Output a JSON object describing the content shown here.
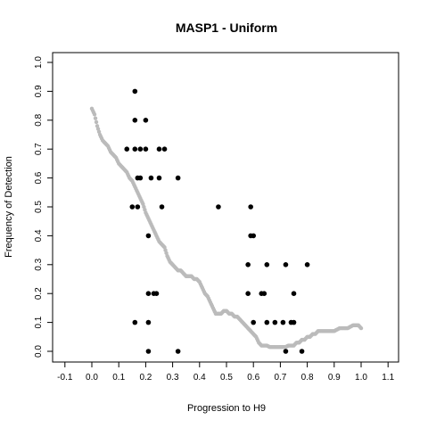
{
  "chart_data": {
    "type": "scatter",
    "title": "MASP1 - Uniform",
    "xlabel": "Progression to H9",
    "ylabel": "Frequency of Detection",
    "xlim": [
      -0.1,
      1.1
    ],
    "ylim": [
      0.0,
      1.0
    ],
    "xticks": [
      "-0.1",
      "0.0",
      "0.1",
      "0.2",
      "0.3",
      "0.4",
      "0.5",
      "0.6",
      "0.7",
      "0.8",
      "0.9",
      "1.0",
      "1.1"
    ],
    "yticks": [
      "0.0",
      "0.1",
      "0.2",
      "0.3",
      "0.4",
      "0.5",
      "0.6",
      "0.7",
      "0.8",
      "0.9",
      "1.0"
    ],
    "grid": false,
    "series": [
      {
        "color": "#000000",
        "points": [
          [
            0.16,
            0.9
          ],
          [
            0.16,
            0.8
          ],
          [
            0.2,
            0.8
          ],
          [
            0.13,
            0.7
          ],
          [
            0.16,
            0.7
          ],
          [
            0.18,
            0.7
          ],
          [
            0.2,
            0.7
          ],
          [
            0.25,
            0.7
          ],
          [
            0.27,
            0.7
          ],
          [
            0.17,
            0.6
          ],
          [
            0.18,
            0.6
          ],
          [
            0.22,
            0.6
          ],
          [
            0.25,
            0.6
          ],
          [
            0.32,
            0.6
          ],
          [
            0.15,
            0.5
          ],
          [
            0.17,
            0.5
          ],
          [
            0.26,
            0.5
          ],
          [
            0.47,
            0.5
          ],
          [
            0.59,
            0.5
          ],
          [
            0.21,
            0.4
          ],
          [
            0.59,
            0.4
          ],
          [
            0.6,
            0.4
          ],
          [
            0.58,
            0.3
          ],
          [
            0.65,
            0.3
          ],
          [
            0.72,
            0.3
          ],
          [
            0.8,
            0.3
          ],
          [
            0.21,
            0.2
          ],
          [
            0.23,
            0.2
          ],
          [
            0.24,
            0.2
          ],
          [
            0.58,
            0.2
          ],
          [
            0.63,
            0.2
          ],
          [
            0.64,
            0.2
          ],
          [
            0.75,
            0.2
          ],
          [
            0.16,
            0.1
          ],
          [
            0.21,
            0.1
          ],
          [
            0.6,
            0.1
          ],
          [
            0.65,
            0.1
          ],
          [
            0.68,
            0.1
          ],
          [
            0.71,
            0.1
          ],
          [
            0.74,
            0.1
          ],
          [
            0.75,
            0.1
          ],
          [
            0.21,
            0.0
          ],
          [
            0.32,
            0.0
          ],
          [
            0.72,
            0.0
          ],
          [
            0.78,
            0.0
          ]
        ]
      },
      {
        "color": "#bbbbbb",
        "style": "dense-points",
        "points": [
          [
            0.0,
            0.84
          ],
          [
            0.01,
            0.82
          ],
          [
            0.02,
            0.78
          ],
          [
            0.03,
            0.75
          ],
          [
            0.04,
            0.73
          ],
          [
            0.05,
            0.72
          ],
          [
            0.06,
            0.71
          ],
          [
            0.07,
            0.69
          ],
          [
            0.08,
            0.68
          ],
          [
            0.09,
            0.67
          ],
          [
            0.1,
            0.65
          ],
          [
            0.11,
            0.64
          ],
          [
            0.12,
            0.63
          ],
          [
            0.13,
            0.62
          ],
          [
            0.14,
            0.6
          ],
          [
            0.15,
            0.59
          ],
          [
            0.16,
            0.57
          ],
          [
            0.17,
            0.55
          ],
          [
            0.18,
            0.53
          ],
          [
            0.19,
            0.51
          ],
          [
            0.2,
            0.48
          ],
          [
            0.21,
            0.46
          ],
          [
            0.22,
            0.44
          ],
          [
            0.23,
            0.42
          ],
          [
            0.24,
            0.4
          ],
          [
            0.25,
            0.38
          ],
          [
            0.26,
            0.37
          ],
          [
            0.27,
            0.36
          ],
          [
            0.28,
            0.33
          ],
          [
            0.29,
            0.31
          ],
          [
            0.3,
            0.3
          ],
          [
            0.31,
            0.29
          ],
          [
            0.32,
            0.28
          ],
          [
            0.33,
            0.28
          ],
          [
            0.34,
            0.27
          ],
          [
            0.35,
            0.26
          ],
          [
            0.36,
            0.26
          ],
          [
            0.37,
            0.26
          ],
          [
            0.38,
            0.25
          ],
          [
            0.39,
            0.25
          ],
          [
            0.4,
            0.24
          ],
          [
            0.41,
            0.22
          ],
          [
            0.42,
            0.2
          ],
          [
            0.43,
            0.19
          ],
          [
            0.44,
            0.17
          ],
          [
            0.45,
            0.15
          ],
          [
            0.46,
            0.13
          ],
          [
            0.47,
            0.13
          ],
          [
            0.48,
            0.13
          ],
          [
            0.49,
            0.14
          ],
          [
            0.5,
            0.14
          ],
          [
            0.51,
            0.13
          ],
          [
            0.52,
            0.13
          ],
          [
            0.53,
            0.12
          ],
          [
            0.54,
            0.12
          ],
          [
            0.55,
            0.11
          ],
          [
            0.56,
            0.1
          ],
          [
            0.57,
            0.09
          ],
          [
            0.58,
            0.08
          ],
          [
            0.59,
            0.07
          ],
          [
            0.6,
            0.06
          ],
          [
            0.61,
            0.05
          ],
          [
            0.62,
            0.03
          ],
          [
            0.63,
            0.02
          ],
          [
            0.64,
            0.02
          ],
          [
            0.65,
            0.02
          ],
          [
            0.66,
            0.015
          ],
          [
            0.67,
            0.015
          ],
          [
            0.68,
            0.015
          ],
          [
            0.69,
            0.015
          ],
          [
            0.7,
            0.015
          ],
          [
            0.71,
            0.015
          ],
          [
            0.72,
            0.015
          ],
          [
            0.73,
            0.02
          ],
          [
            0.74,
            0.02
          ],
          [
            0.75,
            0.02
          ],
          [
            0.76,
            0.03
          ],
          [
            0.77,
            0.03
          ],
          [
            0.78,
            0.04
          ],
          [
            0.79,
            0.04
          ],
          [
            0.8,
            0.05
          ],
          [
            0.81,
            0.05
          ],
          [
            0.82,
            0.06
          ],
          [
            0.83,
            0.06
          ],
          [
            0.84,
            0.07
          ],
          [
            0.85,
            0.07
          ],
          [
            0.86,
            0.07
          ],
          [
            0.87,
            0.07
          ],
          [
            0.88,
            0.07
          ],
          [
            0.89,
            0.07
          ],
          [
            0.9,
            0.07
          ],
          [
            0.91,
            0.075
          ],
          [
            0.92,
            0.08
          ],
          [
            0.93,
            0.08
          ],
          [
            0.94,
            0.08
          ],
          [
            0.95,
            0.08
          ],
          [
            0.96,
            0.085
          ],
          [
            0.97,
            0.09
          ],
          [
            0.98,
            0.09
          ],
          [
            0.99,
            0.09
          ],
          [
            1.0,
            0.08
          ]
        ]
      }
    ]
  }
}
